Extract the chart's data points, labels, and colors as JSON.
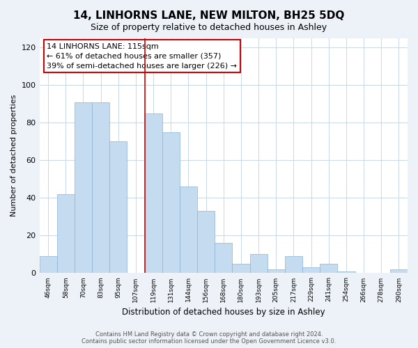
{
  "title": "14, LINHORNS LANE, NEW MILTON, BH25 5DQ",
  "subtitle": "Size of property relative to detached houses in Ashley",
  "xlabel": "Distribution of detached houses by size in Ashley",
  "ylabel": "Number of detached properties",
  "categories": [
    "46sqm",
    "58sqm",
    "70sqm",
    "83sqm",
    "95sqm",
    "107sqm",
    "119sqm",
    "131sqm",
    "144sqm",
    "156sqm",
    "168sqm",
    "180sqm",
    "193sqm",
    "205sqm",
    "217sqm",
    "229sqm",
    "241sqm",
    "254sqm",
    "266sqm",
    "278sqm",
    "290sqm"
  ],
  "values": [
    9,
    42,
    91,
    91,
    70,
    0,
    85,
    75,
    46,
    33,
    16,
    5,
    10,
    2,
    9,
    3,
    5,
    1,
    0,
    0,
    2
  ],
  "bar_color": "#c5dcf0",
  "bar_edge_color": "#8ab4d4",
  "highlight_bar_index": 6,
  "highlight_edge_color": "#cc0000",
  "ylim": [
    0,
    125
  ],
  "yticks": [
    0,
    20,
    40,
    60,
    80,
    100,
    120
  ],
  "annotation_title": "14 LINHORNS LANE: 115sqm",
  "annotation_line1": "← 61% of detached houses are smaller (357)",
  "annotation_line2": "39% of semi-detached houses are larger (226) →",
  "annotation_box_color": "#ffffff",
  "annotation_edge_color": "#cc0000",
  "footer_line1": "Contains HM Land Registry data © Crown copyright and database right 2024.",
  "footer_line2": "Contains public sector information licensed under the Open Government Licence v3.0.",
  "background_color": "#edf2f9",
  "plot_background": "#ffffff",
  "grid_color": "#c8d8ea"
}
